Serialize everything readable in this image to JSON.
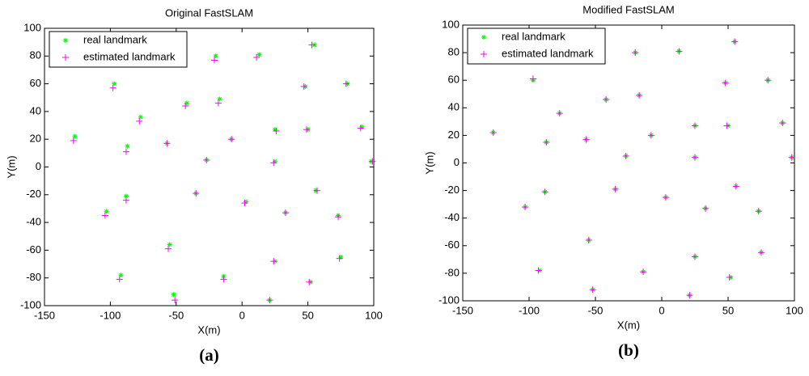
{
  "chart_data": [
    {
      "type": "scatter",
      "title": "Original FastSLAM",
      "x_label": "X(m)",
      "y_label": "Y(m)",
      "caption": "(a)",
      "xlim": [
        -150,
        100
      ],
      "ylim": [
        -100,
        100
      ],
      "xticks": [
        -150,
        -100,
        -50,
        0,
        50,
        100
      ],
      "yticks": [
        -100,
        -80,
        -60,
        -40,
        -20,
        0,
        20,
        40,
        60,
        80,
        100
      ],
      "series": [
        {
          "name": "real landmark",
          "color": "#00ff00",
          "marker": "*",
          "x": [
            -127,
            -97,
            -77,
            -87,
            -57,
            -42,
            -17,
            -20,
            13,
            55,
            48,
            80,
            91,
            25,
            50,
            -8,
            -27,
            25,
            98,
            -35,
            -88,
            -103,
            3,
            33,
            56,
            73,
            75,
            -55,
            -92,
            -52,
            -14,
            25,
            52,
            21
          ],
          "y": [
            22,
            60,
            36,
            15,
            17,
            46,
            49,
            80,
            81,
            88,
            58,
            60,
            29,
            27,
            27,
            20,
            5,
            4,
            4,
            -19,
            -21,
            -32,
            -25,
            -33,
            -17,
            -35,
            -65,
            -56,
            -78,
            -92,
            -79,
            -68,
            -83,
            -96
          ]
        },
        {
          "name": "estimated landmark",
          "color": "#ff00ff",
          "marker": "+",
          "x": [
            -128,
            -98,
            -78,
            -88,
            -57,
            -43,
            -18,
            -21,
            11,
            53,
            47,
            79,
            90,
            26,
            49,
            -8,
            -27,
            24,
            99,
            -35,
            -88,
            -104,
            2,
            33,
            57,
            73,
            74,
            -56,
            -93,
            -51,
            -14,
            24,
            51,
            21
          ],
          "y": [
            19,
            57,
            33,
            11,
            17,
            44,
            46,
            77,
            79,
            88,
            58,
            60,
            28,
            26,
            27,
            20,
            5,
            3,
            4,
            -19,
            -24,
            -35,
            -26,
            -33,
            -17,
            -36,
            -66,
            -59,
            -81,
            -96,
            -81,
            -68,
            -83,
            -96
          ]
        }
      ]
    },
    {
      "type": "scatter",
      "title": "Modified FastSLAM",
      "x_label": "X(m)",
      "y_label": "Y(m)",
      "caption": "(b)",
      "xlim": [
        -150,
        100
      ],
      "ylim": [
        -100,
        100
      ],
      "xticks": [
        -150,
        -100,
        -50,
        0,
        50,
        100
      ],
      "yticks": [
        -100,
        -80,
        -60,
        -40,
        -20,
        0,
        20,
        40,
        60,
        80,
        100
      ],
      "series": [
        {
          "name": "real landmark",
          "color": "#00ff00",
          "marker": "*",
          "x": [
            -127,
            -97,
            -77,
            -87,
            -57,
            -42,
            -17,
            -20,
            13,
            55,
            48,
            80,
            91,
            25,
            50,
            -8,
            -27,
            25,
            98,
            -35,
            -88,
            -103,
            3,
            33,
            56,
            73,
            75,
            -55,
            -92,
            -52,
            -14,
            25,
            52,
            21
          ],
          "y": [
            22,
            60,
            36,
            15,
            17,
            46,
            49,
            80,
            81,
            88,
            58,
            60,
            29,
            27,
            27,
            20,
            5,
            4,
            4,
            -19,
            -21,
            -32,
            -25,
            -33,
            -17,
            -35,
            -65,
            -56,
            -78,
            -92,
            -79,
            -68,
            -83,
            -96
          ]
        },
        {
          "name": "estimated landmark",
          "color": "#ff00ff",
          "marker": "+",
          "x": [
            -127,
            -97,
            -77,
            -87,
            -57,
            -42,
            -17,
            -20,
            13,
            55,
            48,
            80,
            91,
            25,
            49,
            -8,
            -27,
            25,
            98,
            -35,
            -88,
            -103,
            3,
            33,
            56,
            73,
            75,
            -55,
            -93,
            -52,
            -14,
            25,
            51,
            21
          ],
          "y": [
            22,
            61,
            36,
            15,
            17,
            46,
            49,
            80,
            81,
            88,
            58,
            60,
            29,
            27,
            27,
            20,
            5,
            4,
            4,
            -19,
            -21,
            -32,
            -25,
            -33,
            -17,
            -35,
            -65,
            -56,
            -78,
            -92,
            -79,
            -68,
            -83,
            -96
          ]
        }
      ]
    }
  ]
}
